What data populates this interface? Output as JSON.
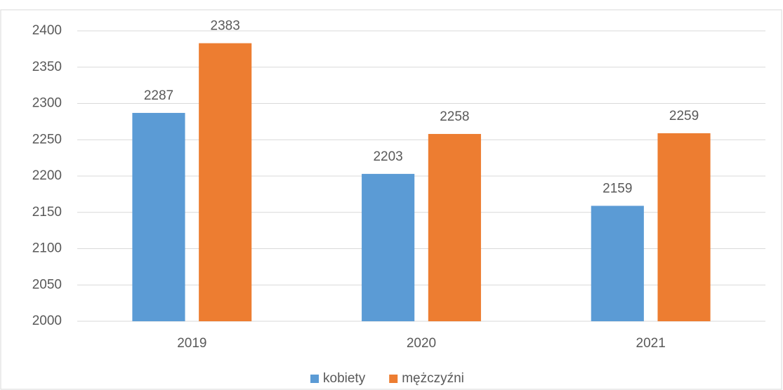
{
  "chart_data": {
    "type": "bar",
    "categories": [
      "2019",
      "2020",
      "2021"
    ],
    "series": [
      {
        "name": "kobiety",
        "color": "#5b9bd5",
        "values": [
          2287,
          2203,
          2159
        ]
      },
      {
        "name": "mężczyźni",
        "color": "#ed7d31",
        "values": [
          2383,
          2258,
          2259
        ]
      }
    ],
    "ylim": [
      2000,
      2400
    ],
    "yticks": [
      2000,
      2050,
      2100,
      2150,
      2200,
      2250,
      2300,
      2350,
      2400
    ],
    "grid": true,
    "legend": "bottom"
  }
}
